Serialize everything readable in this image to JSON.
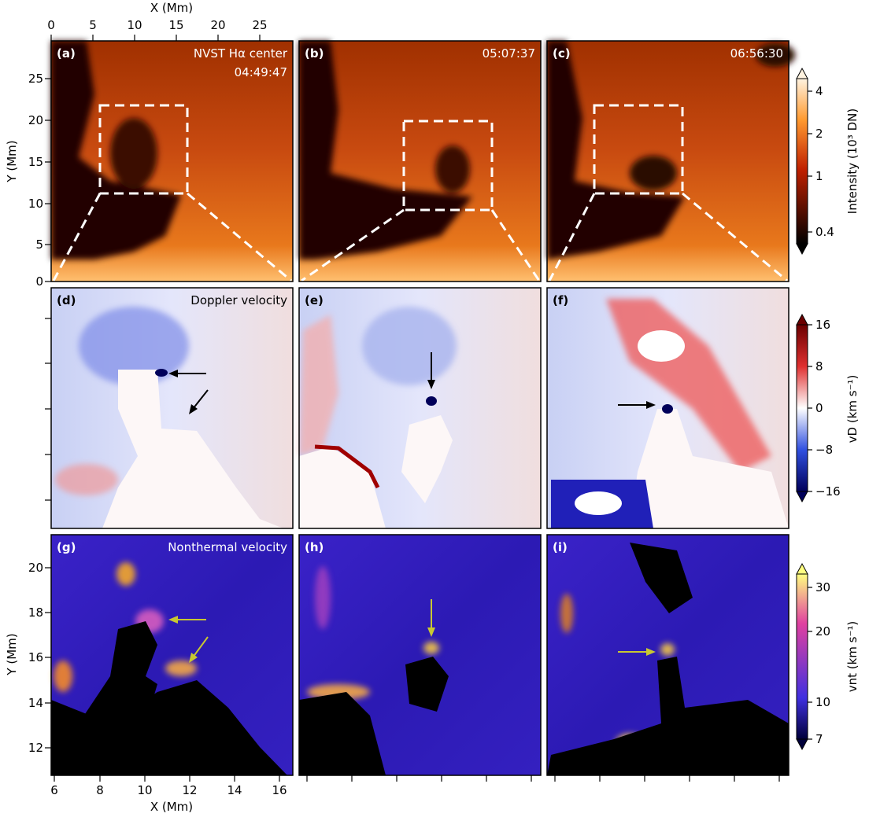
{
  "figure": {
    "top_x_axis": {
      "label": "X (Mm)",
      "ticks": [
        "0",
        "5",
        "10",
        "15",
        "20",
        "25"
      ]
    },
    "top_y_axis": {
      "label": "Y (Mm)",
      "ticks": [
        "0",
        "5",
        "10",
        "15",
        "20",
        "25"
      ]
    },
    "bottom_x_axis": {
      "label": "X (Mm)",
      "ticks": [
        "6",
        "8",
        "10",
        "12",
        "14",
        "16"
      ]
    },
    "bottom_y_axis": {
      "label": "Y (Mm)",
      "ticks": [
        "12",
        "14",
        "16",
        "18",
        "20"
      ]
    },
    "panels": {
      "a": {
        "label": "(a)",
        "title": "NVST Hα center",
        "time": "04:49:47"
      },
      "b": {
        "label": "(b)",
        "time": "05:07:37"
      },
      "c": {
        "label": "(c)",
        "time": "06:56:30"
      },
      "d": {
        "label": "(d)",
        "title": "Doppler velocity"
      },
      "e": {
        "label": "(e)"
      },
      "f": {
        "label": "(f)"
      },
      "g": {
        "label": "(g)",
        "title": "Nonthermal velocity"
      },
      "h": {
        "label": "(h)"
      },
      "i": {
        "label": "(i)"
      }
    },
    "colorbars": {
      "intensity": {
        "label": "Intensity (10³ DN)",
        "ticks": [
          "4",
          "2",
          "1",
          "0.4"
        ],
        "colors": [
          "#fff3e0",
          "#ff9a30",
          "#c02000",
          "#000000"
        ]
      },
      "doppler": {
        "label": "vD (km s⁻¹)",
        "ticks": [
          "16",
          "8",
          "0",
          "−8",
          "−16"
        ],
        "colors": [
          "#6b0000",
          "#e03030",
          "#ffffff",
          "#3050e0",
          "#00005a"
        ]
      },
      "nonthermal": {
        "label": "vnt (km s⁻¹)",
        "ticks": [
          "30",
          "20",
          "10",
          "7"
        ],
        "colors": [
          "#ffff80",
          "#e040a0",
          "#4030e0",
          "#00003a"
        ]
      }
    },
    "arrow_colors": {
      "doppler": "#000000",
      "nonthermal": "#c8c832"
    }
  }
}
